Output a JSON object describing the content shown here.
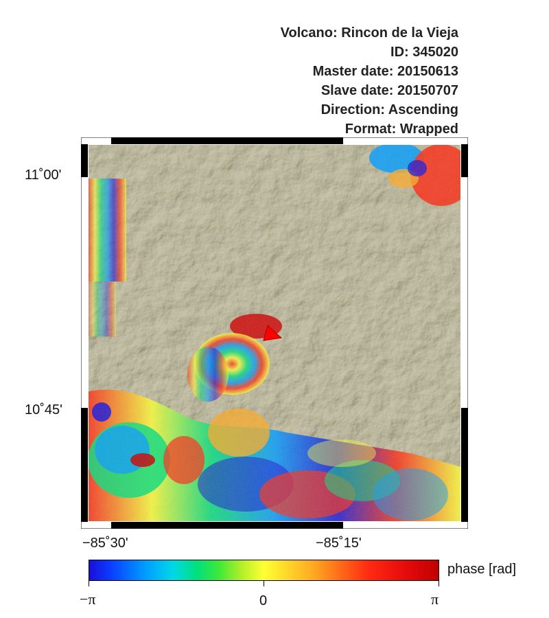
{
  "header": {
    "volcano": "Volcano: Rincon de la Vieja",
    "id": "ID: 345020",
    "master_date": "Master date: 20150613",
    "slave_date": "Slave date: 20150707",
    "direction": "Direction: Ascending",
    "format": "Format: Wrapped"
  },
  "map": {
    "latitude_labels": [
      "11˚00'",
      "10˚45'"
    ],
    "longitude_labels": [
      "−85˚30'",
      "−85˚15'"
    ],
    "volcano_marker_color": "#ff0000",
    "background_tone": "#9a8f55"
  },
  "colorbar": {
    "title": "phase [rad]",
    "min_label": "−π",
    "mid_label": "0",
    "max_label": "π",
    "colors": [
      "#1a0fd6",
      "#009cff",
      "#00e07a",
      "#ffff33",
      "#ffaa22",
      "#ff2a12",
      "#c00000"
    ]
  }
}
